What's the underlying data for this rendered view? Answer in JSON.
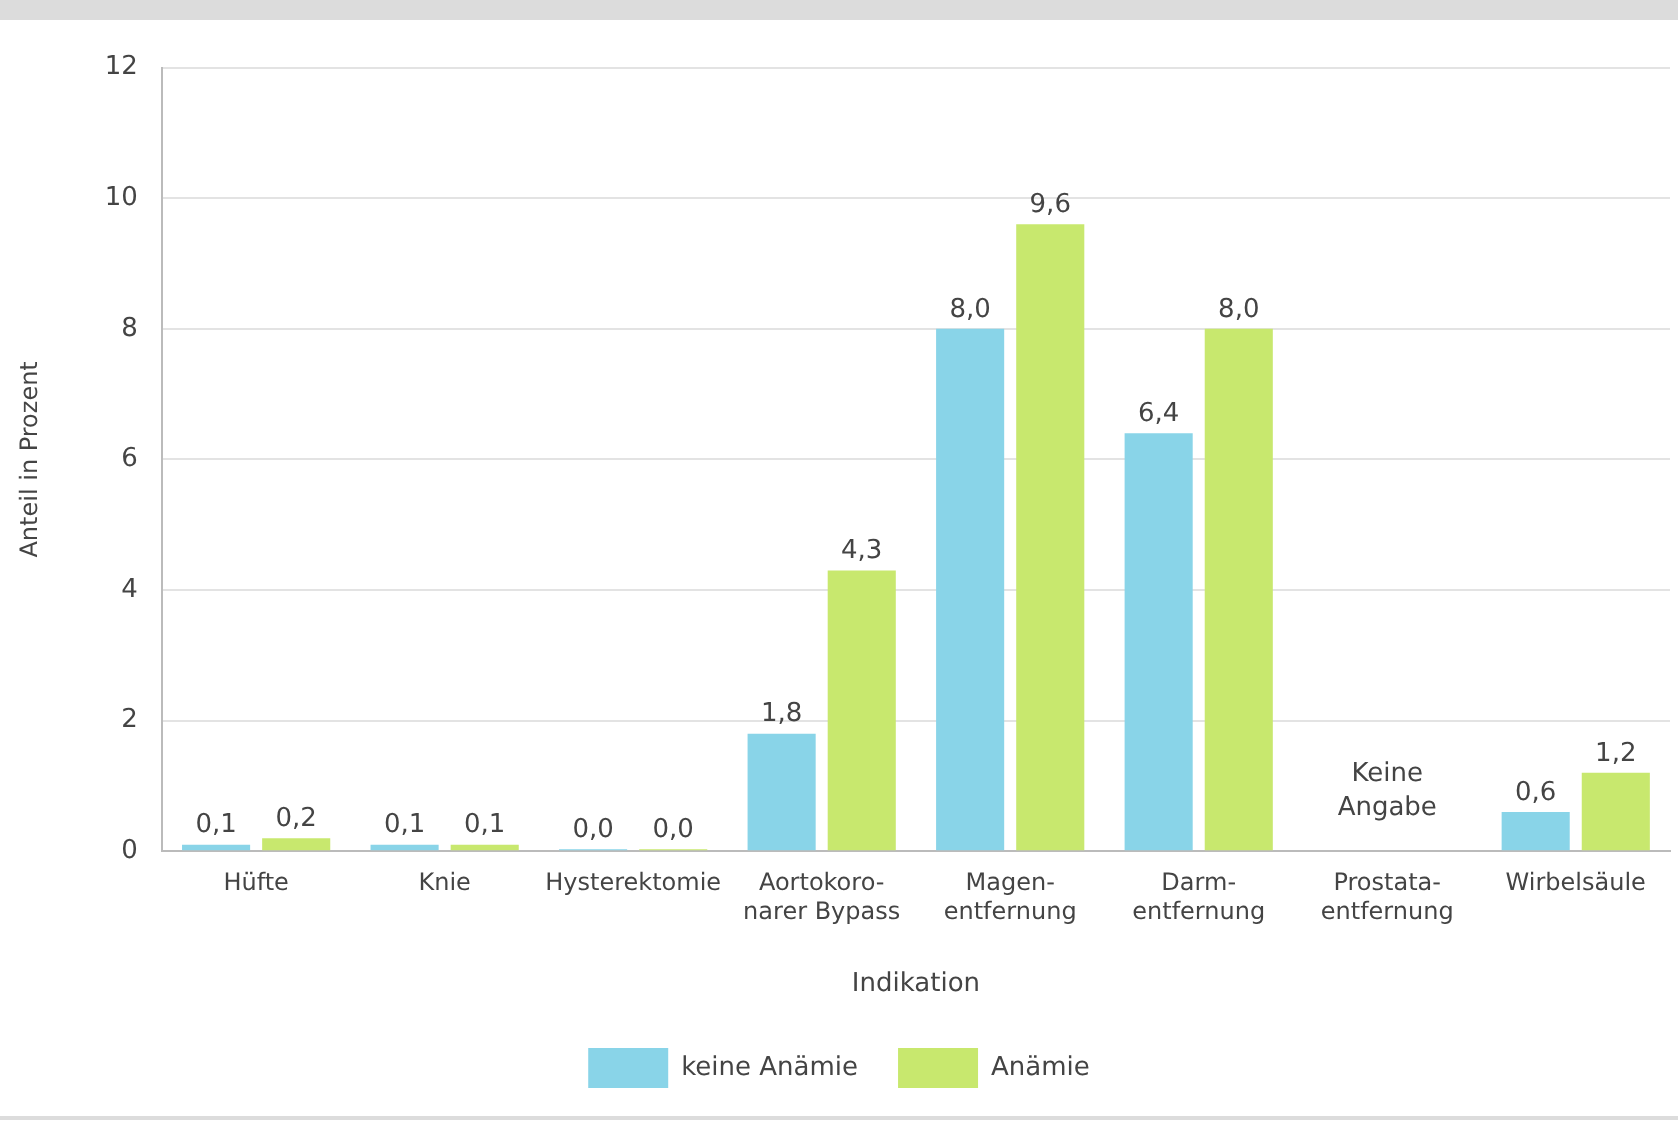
{
  "chart_data": {
    "type": "bar",
    "xlabel": "Indikation",
    "ylabel": "Anteil in Prozent",
    "categories": [
      "Hüfte",
      "Knie",
      "Hysterektomie",
      "Aortokoro-\nnarer Bypass",
      "Magen-\nentfernung",
      "Darm-\nentfernung",
      "Prostata-\nentfernung",
      "Wirbelsäule"
    ],
    "series": [
      {
        "name": "keine Anämie",
        "color": "#89d4e8",
        "values": [
          0.1,
          0.1,
          0.0,
          1.8,
          8.0,
          6.4,
          null,
          0.6
        ],
        "value_labels": [
          "0,1",
          "0,1",
          "0,0",
          "1,8",
          "8,0",
          "6,4",
          null,
          "0,6"
        ]
      },
      {
        "name": "Anämie",
        "color": "#c8e86e",
        "values": [
          0.2,
          0.1,
          0.0,
          4.3,
          9.6,
          8.0,
          null,
          1.2
        ],
        "value_labels": [
          "0,2",
          "0,1",
          "0,0",
          "4,3",
          "9,6",
          "8,0",
          null,
          "1,2"
        ]
      }
    ],
    "annotations": [
      "Keine Angabe"
    ],
    "ylim": [
      0,
      12
    ],
    "yticks": [
      0,
      2,
      4,
      6,
      8,
      10,
      12
    ],
    "grid": "y",
    "legend": "bottom"
  }
}
